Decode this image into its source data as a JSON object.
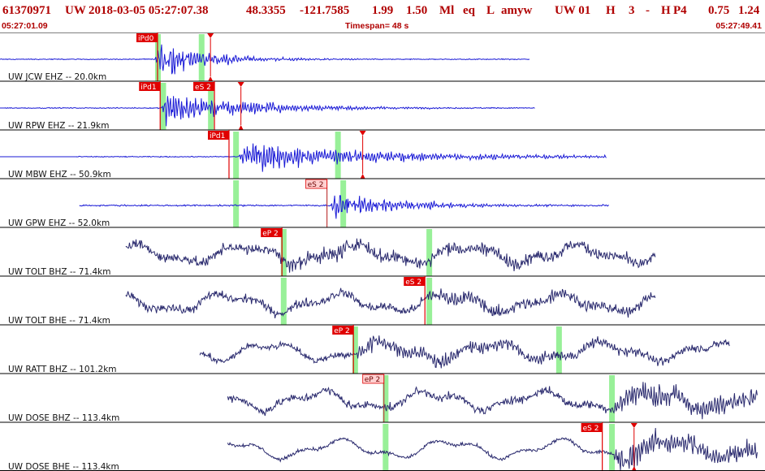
{
  "header": {
    "event_id": "61370971",
    "network": "UW",
    "datetime": "2018-03-05 05:27:07.38",
    "lat": "48.3355",
    "lon": "-121.7585",
    "depth": "1.99",
    "magnitude": "1.50",
    "mag_type": "Ml",
    "event_type": "eq",
    "event_flag": "L",
    "author": "amyw",
    "source": "UW 01",
    "quality": "H",
    "num1": "3",
    "dash": "-",
    "qual2": "H",
    "qual3": "P4",
    "val1": "0.75",
    "val2": "1.24",
    "time_start": "05:27:01.09",
    "timespan": "Timespan=  48 s",
    "time_end": "05:27:49.41"
  },
  "colors": {
    "header_text": "#b00000",
    "trace_short_period": "#1a1ad6",
    "trace_broadband": "#2a2a6e",
    "pick_marker": "#e00000",
    "pick_label_bg": "#e00000",
    "pick_label_bg_light": "#ffd0d0",
    "window_green": "#98f098",
    "divider": "#000000"
  },
  "traces": [
    {
      "label": "UW JCW EHZ -- 20.0km",
      "color": "short_period",
      "start_s": 0,
      "end_s": 40,
      "onset_s": 11.7,
      "amp": 0.75,
      "noise": 0.03,
      "decay": 4,
      "cycles": 28,
      "pre_line": true,
      "picks": [
        {
          "text": "iPd0",
          "t": 11.9,
          "style": "red"
        },
        {
          "text": "",
          "t": 15.9,
          "style": "triangle"
        }
      ],
      "windows": [
        11.9,
        15.2
      ]
    },
    {
      "label": "UW RPW EHZ -- 21.9km",
      "color": "short_period",
      "start_s": 0.4,
      "end_s": 40.4,
      "onset_s": 12.2,
      "amp": 0.8,
      "noise": 0.03,
      "decay": 6,
      "cycles": 30,
      "pre_line": true,
      "picks": [
        {
          "text": "iPd1",
          "t": 12.1,
          "style": "red"
        },
        {
          "text": "eS 2",
          "t": 16.2,
          "style": "red"
        },
        {
          "text": "",
          "t": 18.2,
          "style": "triangle"
        }
      ],
      "windows": [
        12.3,
        15.9
      ]
    },
    {
      "label": "UW MBW EHZ -- 50.9km",
      "color": "short_period",
      "start_s": 5.8,
      "end_s": 45.8,
      "onset_s": 18.0,
      "amp": 0.55,
      "noise": 0.03,
      "decay": 12,
      "cycles": 30,
      "pre_line": true,
      "picks": [
        {
          "text": "iPd1",
          "t": 17.3,
          "style": "red"
        },
        {
          "text": "",
          "t": 27.4,
          "style": "triangle"
        }
      ],
      "windows": [
        17.8,
        25.5
      ]
    },
    {
      "label": "UW GPW EHZ -- 52.0km",
      "color": "short_period",
      "start_s": 6.0,
      "end_s": 46.0,
      "onset_s": 25.0,
      "amp": 0.6,
      "noise": 0.05,
      "decay": 5,
      "cycles": 30,
      "pre_line": false,
      "picks": [
        {
          "text": "eS 2",
          "t": 24.7,
          "style": "light"
        }
      ],
      "windows": [
        17.8,
        25.9
      ]
    },
    {
      "label": "UW TOLT BHZ -- 71.4km",
      "color": "broadband",
      "start_s": 9.5,
      "end_s": 49.5,
      "onset_s": 21.3,
      "amp": 0.25,
      "noise": 0.35,
      "decay": 30,
      "cycles": 30,
      "pre_line": false,
      "picks": [
        {
          "text": "eP 2",
          "t": 21.3,
          "style": "red"
        }
      ],
      "windows": [
        21.4,
        32.4
      ]
    },
    {
      "label": "UW TOLT BHE -- 71.4km",
      "color": "broadband",
      "start_s": 9.5,
      "end_s": 49.5,
      "onset_s": 32.0,
      "amp": 0.3,
      "noise": 0.3,
      "decay": 15,
      "cycles": 30,
      "pre_line": false,
      "picks": [
        {
          "text": "eS 2",
          "t": 32.1,
          "style": "red"
        }
      ],
      "windows": [
        21.4,
        32.4
      ]
    },
    {
      "label": "UW RATT BHZ -- 101.2km",
      "color": "broadband",
      "start_s": 15.1,
      "end_s": 55.1,
      "onset_s": 26.9,
      "amp": 0.35,
      "noise": 0.22,
      "decay": 20,
      "cycles": 30,
      "pre_line": false,
      "picks": [
        {
          "text": "eP 2",
          "t": 26.7,
          "style": "red"
        }
      ],
      "windows": [
        26.8,
        42.2
      ]
    },
    {
      "label": "UW DOSE BHZ -- 113.4km",
      "color": "broadband",
      "start_s": 17.2,
      "end_s": 57.2,
      "onset_s": 46.0,
      "amp": 0.45,
      "noise": 0.28,
      "decay": 30,
      "cycles": 30,
      "pre_line": false,
      "picks": [
        {
          "text": "eP 2",
          "t": 29.0,
          "style": "light"
        }
      ],
      "windows": [
        29.1,
        46.2
      ]
    },
    {
      "label": "UW DOSE BHE -- 113.4km",
      "color": "broadband",
      "start_s": 17.2,
      "end_s": 57.2,
      "onset_s": 46.3,
      "amp": 0.55,
      "noise": 0.12,
      "decay": 30,
      "cycles": 30,
      "pre_line": false,
      "picks": [
        {
          "text": "eS 2",
          "t": 45.5,
          "style": "red"
        },
        {
          "text": "",
          "t": 47.9,
          "style": "triangle"
        }
      ],
      "windows": [
        29.1,
        46.2
      ]
    }
  ]
}
